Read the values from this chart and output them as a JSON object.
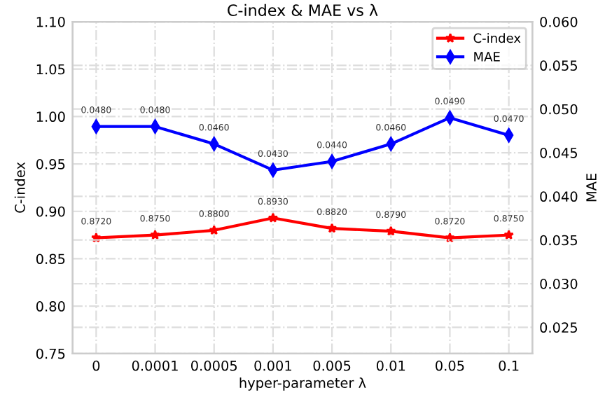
{
  "chart_data": {
    "type": "line",
    "title": "C-index & MAE vs λ",
    "xlabel": "hyper-parameter λ",
    "ylabel": "C-index",
    "y2label": "MAE",
    "categories": [
      "0",
      "0.0001",
      "0.0005",
      "0.001",
      "0.005",
      "0.01",
      "0.05",
      "0.1"
    ],
    "series": [
      {
        "name": "C-index",
        "color": "#ff0000",
        "marker": "star",
        "values": [
          0.872,
          0.875,
          0.88,
          0.893,
          0.882,
          0.879,
          0.872,
          0.875
        ],
        "value_labels": [
          "0.8720",
          "0.8750",
          "0.8800",
          "0.8930",
          "0.8820",
          "0.8790",
          "0.8720",
          "0.8750"
        ]
      },
      {
        "name": "MAE",
        "color": "#0000ff",
        "marker": "diamond",
        "axis": "y2",
        "values": [
          0.048,
          0.048,
          0.046,
          0.043,
          0.044,
          0.046,
          0.049,
          0.047
        ],
        "value_labels": [
          "0.0480",
          "0.0480",
          "0.0460",
          "0.0430",
          "0.0440",
          "0.0460",
          "0.0490",
          "0.0470"
        ]
      }
    ],
    "ylim": [
      0.75,
      1.1
    ],
    "yticks": [
      {
        "value": 0.75,
        "label": "0.75"
      },
      {
        "value": 0.8,
        "label": "0.80"
      },
      {
        "value": 0.85,
        "label": "0.85"
      },
      {
        "value": 0.9,
        "label": "0.90"
      },
      {
        "value": 0.95,
        "label": "0.95"
      },
      {
        "value": 1.0,
        "label": "1.00"
      },
      {
        "value": 1.05,
        "label": "1.05"
      },
      {
        "value": 1.1,
        "label": "1.10"
      }
    ],
    "y2lim": [
      0.022,
      0.06
    ],
    "y2ticks": [
      {
        "value": 0.025,
        "label": "0.025"
      },
      {
        "value": 0.03,
        "label": "0.030"
      },
      {
        "value": 0.035,
        "label": "0.035"
      },
      {
        "value": 0.04,
        "label": "0.040"
      },
      {
        "value": 0.045,
        "label": "0.045"
      },
      {
        "value": 0.05,
        "label": "0.050"
      },
      {
        "value": 0.055,
        "label": "0.055"
      },
      {
        "value": 0.06,
        "label": "0.060"
      }
    ],
    "grid": true,
    "legend": "top right",
    "line_style": "solid"
  }
}
